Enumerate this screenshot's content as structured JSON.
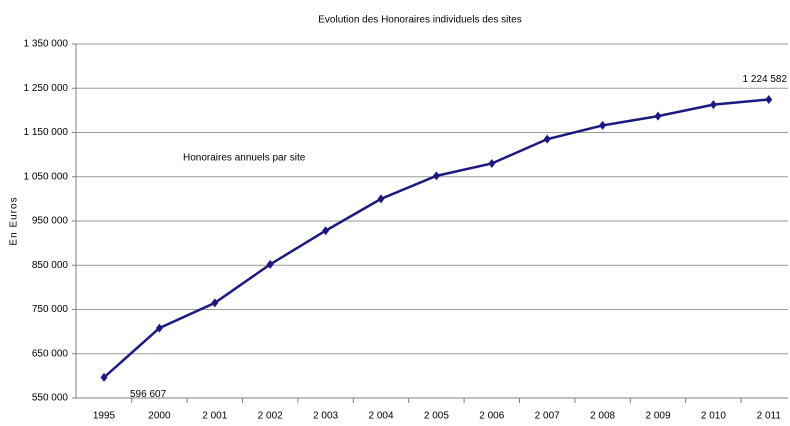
{
  "chart_data": {
    "type": "line",
    "title": "Evolution des Honoraires individuels des sites",
    "y_label": "En Euros",
    "annotation": "Honoraires annuels par site",
    "categories": [
      "1995",
      "2000",
      "2 001",
      "2 002",
      "2 003",
      "2 004",
      "2 005",
      "2 006",
      "2 007",
      "2 008",
      "2 009",
      "2 010",
      "2 011"
    ],
    "series": [
      {
        "name": "Honoraires annuels par site",
        "color": "#1c1a80",
        "values": [
          596607,
          708000,
          765000,
          852000,
          928000,
          1000000,
          1052000,
          1080000,
          1135000,
          1166000,
          1187000,
          1213000,
          1224582
        ],
        "value_labels": [
          "596 607",
          null,
          null,
          null,
          null,
          null,
          null,
          null,
          null,
          null,
          null,
          null,
          "1 224 582"
        ]
      }
    ],
    "ylim": [
      550000,
      1350000
    ],
    "yticks": [
      {
        "value": 550000,
        "label": "550 000"
      },
      {
        "value": 650000,
        "label": "650 000"
      },
      {
        "value": 750000,
        "label": "750 000"
      },
      {
        "value": 850000,
        "label": "850 000"
      },
      {
        "value": 950000,
        "label": "950 000"
      },
      {
        "value": 1050000,
        "label": "1 050 000"
      },
      {
        "value": 1150000,
        "label": "1 150 000"
      },
      {
        "value": 1250000,
        "label": "1 250 000"
      },
      {
        "value": 1350000,
        "label": "1 350 000"
      }
    ],
    "grid": true
  }
}
